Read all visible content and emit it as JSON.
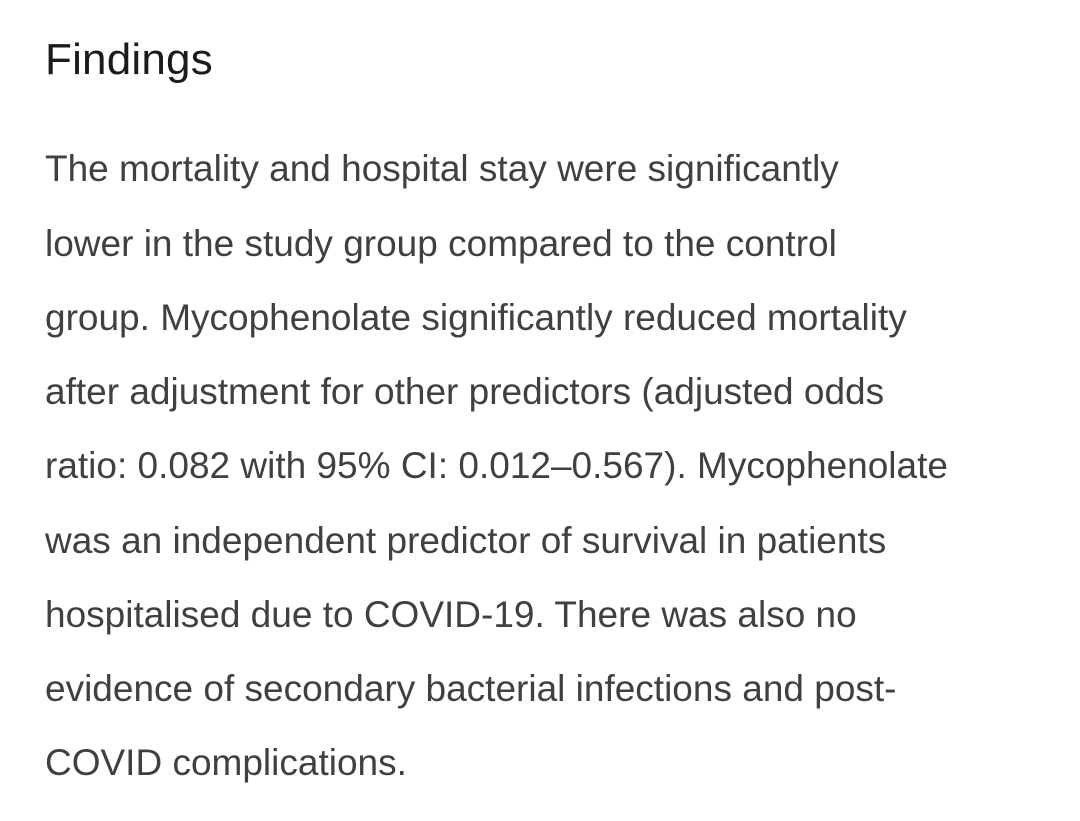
{
  "section": {
    "title": "Findings",
    "lines": [
      "The mortality and hospital stay were significantly",
      "lower in the study group compared to the control",
      "group. Mycophenolate significantly reduced mortality",
      "after adjustment for other predictors (adjusted odds",
      "ratio: 0.082 with 95% CI: 0.012–0.567). Mycophenolate",
      "was an independent predictor of survival in patients",
      "hospitalised due to COVID-19. There was also no",
      "evidence of secondary bacterial infections and post-",
      "COVID complications."
    ]
  },
  "colors": {
    "heading": "#1b1b1b",
    "body": "#404040",
    "background": "#ffffff"
  }
}
